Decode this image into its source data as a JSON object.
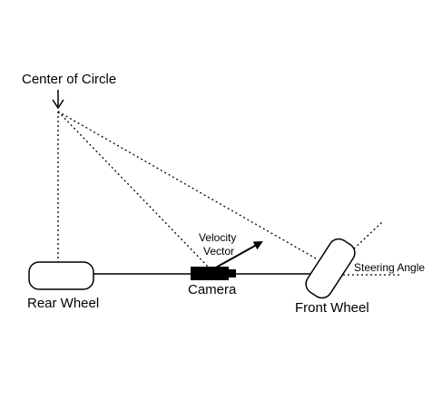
{
  "labels": {
    "center": "Center of Circle",
    "velocity_line1": "Velocity",
    "velocity_line2": "Vector",
    "steering": "Steering Angle",
    "rear_wheel": "Rear Wheel",
    "camera": "Camera",
    "front_wheel": "Front Wheel"
  },
  "colors": {
    "ink": "#000000",
    "background": "#ffffff"
  }
}
